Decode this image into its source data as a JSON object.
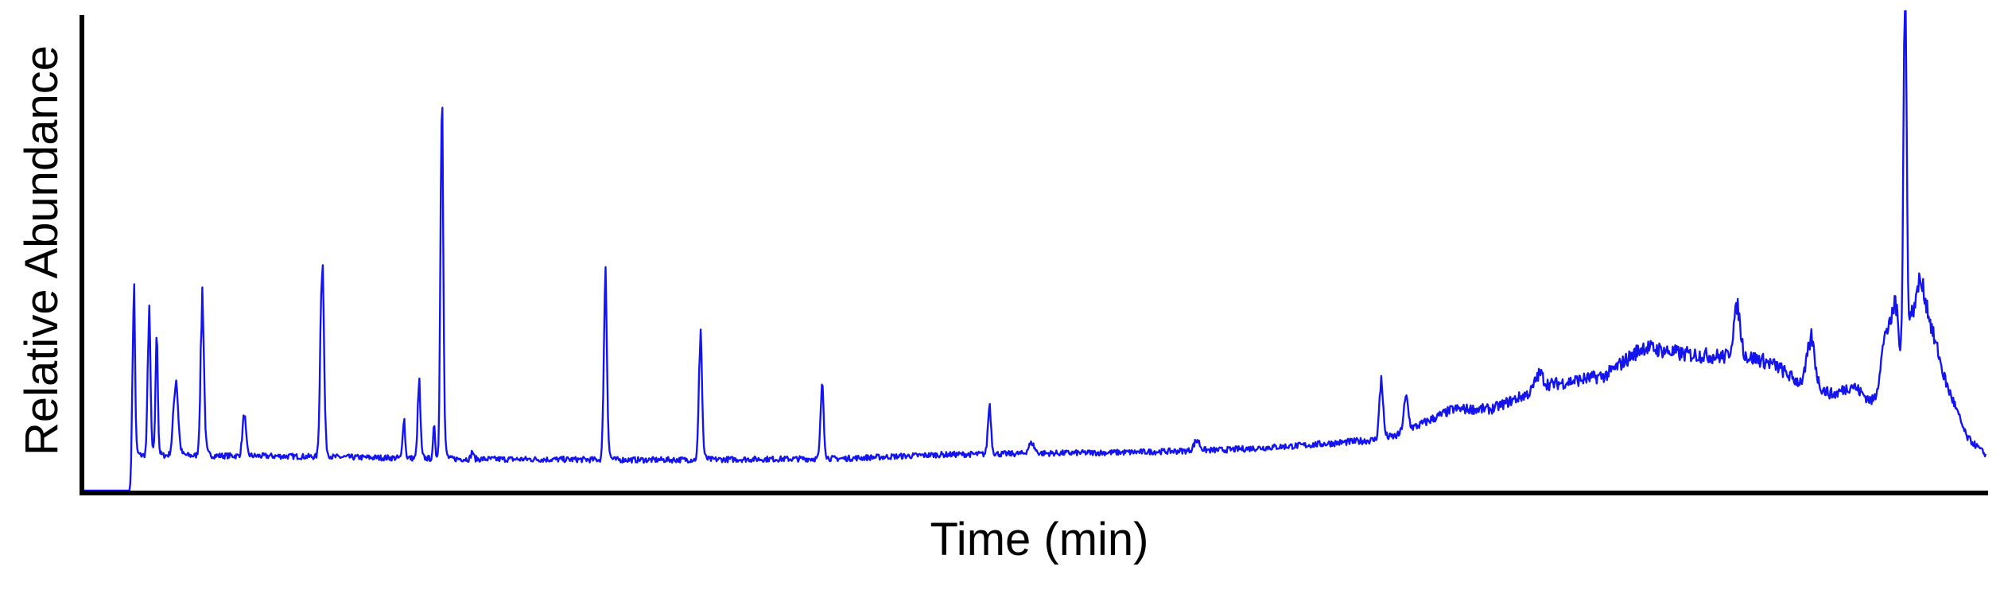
{
  "chart_data": {
    "type": "line",
    "xlabel": "Time (min)",
    "ylabel": "Relative Abundance",
    "xlim": [
      0,
      100
    ],
    "ylim": [
      0,
      100
    ],
    "grid": false,
    "legend": "none",
    "x_ticks_shown": false,
    "y_ticks_shown": false,
    "series": [
      {
        "color": "#1414ee",
        "baseline": [
          [
            0,
            0
          ],
          [
            2.4,
            0
          ],
          [
            2.5,
            7.4
          ],
          [
            10,
            7.2
          ],
          [
            20,
            6.6
          ],
          [
            30,
            6.4
          ],
          [
            40,
            6.7
          ],
          [
            45,
            7.5
          ],
          [
            55,
            8.0
          ],
          [
            60,
            8.5
          ],
          [
            64,
            9.4
          ],
          [
            68,
            10.6
          ],
          [
            69,
            11.4
          ],
          [
            72,
            17.0
          ],
          [
            74,
            17.0
          ],
          [
            77,
            22.0
          ],
          [
            80,
            24.0
          ],
          [
            82,
            30.0
          ],
          [
            84,
            28.5
          ],
          [
            86,
            28.0
          ],
          [
            88,
            27.5
          ],
          [
            89,
            26.0
          ],
          [
            90,
            23.0
          ],
          [
            92,
            20.0
          ],
          [
            93,
            22.0
          ],
          [
            94,
            18.5
          ],
          [
            95,
            16.0
          ],
          [
            96,
            18.0
          ],
          [
            96.8,
            22.0
          ],
          [
            97.5,
            24.0
          ],
          [
            98.3,
            18.0
          ],
          [
            99,
            11.0
          ],
          [
            100,
            7.5
          ]
        ],
        "peaks": [
          {
            "x": 2.6,
            "height": 32.5,
            "width": 0.06
          },
          {
            "x": 3.4,
            "height": 27.5,
            "width": 0.07
          },
          {
            "x": 3.8,
            "height": 23.5,
            "width": 0.06
          },
          {
            "x": 4.8,
            "height": 14.5,
            "width": 0.12
          },
          {
            "x": 6.2,
            "height": 29.5,
            "width": 0.09
          },
          {
            "x": 8.4,
            "height": 8.0,
            "width": 0.09
          },
          {
            "x": 12.5,
            "height": 39.5,
            "width": 0.09
          },
          {
            "x": 16.8,
            "height": 8.0,
            "width": 0.06
          },
          {
            "x": 17.6,
            "height": 14.5,
            "width": 0.07
          },
          {
            "x": 18.4,
            "height": 6.5,
            "width": 0.05
          },
          {
            "x": 18.8,
            "height": 74.5,
            "width": 0.07
          },
          {
            "x": 20.4,
            "height": 1.5,
            "width": 0.06
          },
          {
            "x": 27.4,
            "height": 35.5,
            "width": 0.08
          },
          {
            "x": 32.4,
            "height": 24.5,
            "width": 0.08
          },
          {
            "x": 38.8,
            "height": 14.5,
            "width": 0.08
          },
          {
            "x": 47.6,
            "height": 9.5,
            "width": 0.08
          },
          {
            "x": 49.8,
            "height": 2.0,
            "width": 0.15
          },
          {
            "x": 58.5,
            "height": 2.0,
            "width": 0.15
          },
          {
            "x": 68.2,
            "height": 11.0,
            "width": 0.1
          },
          {
            "x": 69.5,
            "height": 6.5,
            "width": 0.12
          },
          {
            "x": 76.5,
            "height": 3.0,
            "width": 0.2
          },
          {
            "x": 86.9,
            "height": 9.5,
            "width": 0.18
          },
          {
            "x": 90.8,
            "height": 9.0,
            "width": 0.2
          },
          {
            "x": 94.7,
            "height": 13.5,
            "width": 0.25
          },
          {
            "x": 95.2,
            "height": 16.0,
            "width": 0.2
          },
          {
            "x": 95.75,
            "height": 72.5,
            "width": 0.08
          },
          {
            "x": 96.4,
            "height": 20.0,
            "width": 0.6
          }
        ],
        "noise_amplitude": 0.6
      }
    ]
  }
}
